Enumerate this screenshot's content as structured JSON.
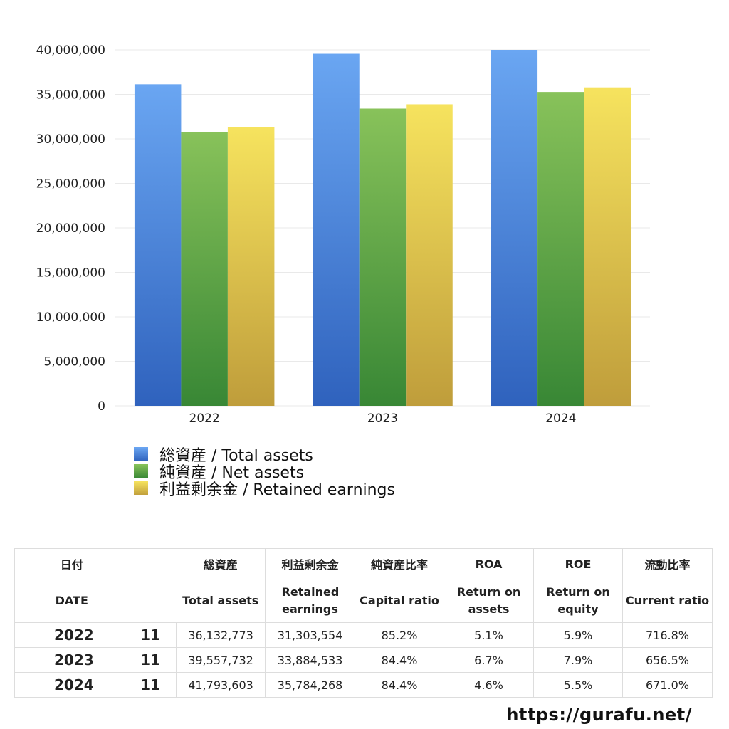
{
  "chart_data": {
    "type": "bar",
    "categories": [
      "2022",
      "2023",
      "2024"
    ],
    "series": [
      {
        "name": "総資産 / Total assets",
        "values": [
          36132773,
          39557732,
          41793603
        ],
        "color_top": "#6aa6f2",
        "color_bottom": "#2f62bd"
      },
      {
        "name": "純資産 / Net assets",
        "values": [
          30780000,
          33400000,
          35270000
        ],
        "color_top": "#88c25a",
        "color_bottom": "#388735"
      },
      {
        "name": "利益剰余金 / Retained earnings",
        "values": [
          31303554,
          33884533,
          35784268
        ],
        "color_top": "#f6e35e",
        "color_bottom": "#bf9d3b"
      }
    ],
    "ylim": [
      0,
      40000000
    ],
    "yticks": [
      "40,000,000",
      "35,000,000",
      "30,000,000",
      "25,000,000",
      "20,000,000",
      "15,000,000",
      "10,000,000",
      "5,000,000",
      "0"
    ],
    "grid": true,
    "legend_position": "bottom-left"
  },
  "table": {
    "header_jp": [
      "日付",
      "総資産",
      "利益剰余金",
      "純資産比率",
      "ROA",
      "ROE",
      "流動比率"
    ],
    "header_en": [
      "DATE",
      "Total assets",
      "Retained earnings",
      "Capital ratio",
      "Return on assets",
      "Return on equity",
      "Current ratio"
    ],
    "rows": [
      {
        "year": "2022",
        "month": "11",
        "total_assets": "36,132,773",
        "retained_earnings": "31,303,554",
        "capital_ratio": "85.2%",
        "roa": "5.1%",
        "roe": "5.9%",
        "current_ratio": "716.8%"
      },
      {
        "year": "2023",
        "month": "11",
        "total_assets": "39,557,732",
        "retained_earnings": "33,884,533",
        "capital_ratio": "84.4%",
        "roa": "6.7%",
        "roe": "7.9%",
        "current_ratio": "656.5%"
      },
      {
        "year": "2024",
        "month": "11",
        "total_assets": "41,793,603",
        "retained_earnings": "35,784,268",
        "capital_ratio": "84.4%",
        "roa": "4.6%",
        "roe": "5.5%",
        "current_ratio": "671.0%"
      }
    ]
  },
  "site_url": "https://gurafu.net/"
}
